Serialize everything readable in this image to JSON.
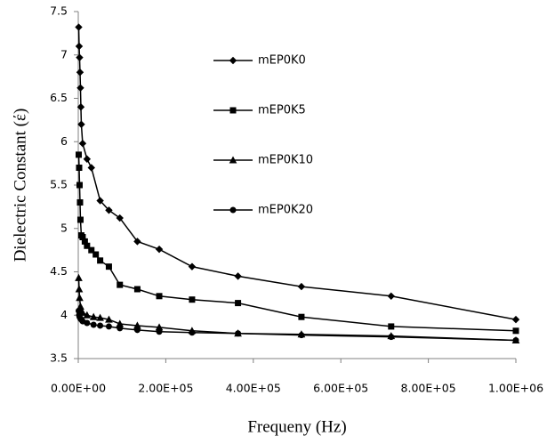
{
  "chart_data": {
    "type": "line",
    "x_label": "Frequeny (Hz)",
    "y_label": "Dielectric Constant (έ)",
    "xlim": [
      0,
      1000000
    ],
    "ylim": [
      3.5,
      7.5
    ],
    "xticks": [
      {
        "value": 0,
        "label": "0.00E+00"
      },
      {
        "value": 200000,
        "label": "2.00E+05"
      },
      {
        "value": 400000,
        "label": "4.00E+05"
      },
      {
        "value": 600000,
        "label": "6.00E+05"
      },
      {
        "value": 800000,
        "label": "8.00E+05"
      },
      {
        "value": 1000000,
        "label": "1.00E+06"
      }
    ],
    "yticks": [
      3.5,
      4,
      4.5,
      5,
      5.5,
      6,
      6.5,
      7,
      7.5
    ],
    "grid": false,
    "legend": "inside-top",
    "series": [
      {
        "name": "mEP0K0",
        "color": "#000000",
        "marker": "diamond",
        "x": [
          1000,
          2000,
          3000,
          4000,
          5000,
          6000,
          7000,
          10000,
          20000,
          30000,
          50000,
          70000,
          95000,
          135000,
          185000,
          260000,
          365000,
          510000,
          715000,
          1000000
        ],
        "values": [
          7.32,
          7.1,
          6.97,
          6.8,
          6.62,
          6.4,
          6.2,
          5.98,
          5.8,
          5.7,
          5.32,
          5.21,
          5.12,
          4.85,
          4.76,
          4.56,
          4.45,
          4.33,
          4.22,
          3.95
        ]
      },
      {
        "name": "mEP0K5",
        "color": "#000000",
        "marker": "square",
        "x": [
          1000,
          2000,
          3000,
          4000,
          5000,
          7000,
          10000,
          15000,
          20000,
          30000,
          40000,
          50000,
          70000,
          95000,
          135000,
          185000,
          260000,
          365000,
          510000,
          715000,
          1000000
        ],
        "values": [
          5.85,
          5.7,
          5.5,
          5.3,
          5.1,
          4.92,
          4.9,
          4.85,
          4.8,
          4.75,
          4.7,
          4.63,
          4.56,
          4.35,
          4.3,
          4.22,
          4.18,
          4.14,
          3.98,
          3.87,
          3.82
        ]
      },
      {
        "name": "mEP0K10",
        "color": "#000000",
        "marker": "triangle",
        "x": [
          1000,
          2000,
          3000,
          5000,
          7000,
          10000,
          20000,
          35000,
          50000,
          70000,
          95000,
          135000,
          185000,
          260000,
          365000,
          510000,
          715000,
          1000000
        ],
        "values": [
          4.43,
          4.3,
          4.2,
          4.1,
          4.05,
          4.03,
          4.0,
          3.98,
          3.97,
          3.95,
          3.9,
          3.88,
          3.86,
          3.82,
          3.79,
          3.78,
          3.76,
          3.71
        ]
      },
      {
        "name": "mEP0K20",
        "color": "#000000",
        "marker": "circle",
        "x": [
          1000,
          2000,
          3000,
          5000,
          7000,
          10000,
          20000,
          35000,
          50000,
          70000,
          95000,
          135000,
          185000,
          260000,
          365000,
          510000,
          715000,
          1000000
        ],
        "values": [
          4.05,
          4.0,
          3.98,
          3.96,
          3.95,
          3.93,
          3.91,
          3.89,
          3.88,
          3.87,
          3.85,
          3.83,
          3.81,
          3.8,
          3.79,
          3.77,
          3.75,
          3.71
        ]
      }
    ]
  }
}
